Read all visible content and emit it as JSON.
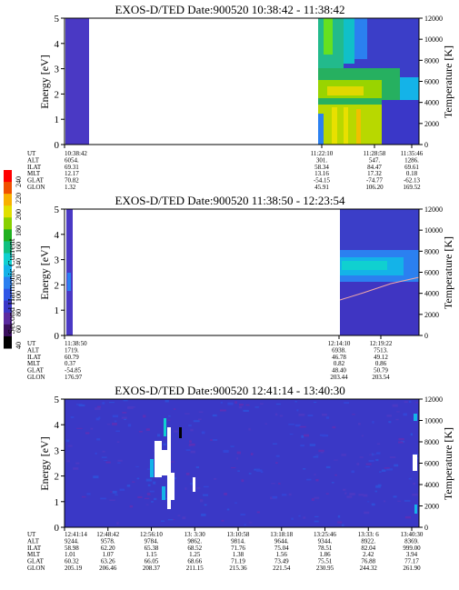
{
  "colorbar": {
    "label": "Second Harmonic Current",
    "ticks": [
      "40",
      "60",
      "80",
      "100",
      "120",
      "140",
      "160",
      "180",
      "200",
      "220",
      "240"
    ],
    "colors": [
      "#000000",
      "#3b0f5e",
      "#5b2aa0",
      "#3a37c8",
      "#2f56e6",
      "#2b80f0",
      "#14b3e8",
      "#10d0d0",
      "#10c080",
      "#20b020",
      "#88d000",
      "#e0e000",
      "#f8b000",
      "#f05000",
      "#ff0000"
    ]
  },
  "chart_data": [
    {
      "type": "heatmap",
      "title": "EXOS-D/TED   Date:900520  10:38:42 - 11:38:42",
      "ylabel": "Energy [eV]",
      "ylabel_right": "Temperature [K]",
      "ylim": [
        0,
        5
      ],
      "ylim_right": [
        0,
        12000
      ],
      "yticks": [
        "0",
        "1",
        "2",
        "3",
        "4",
        "5"
      ],
      "yticks_right": [
        "0",
        "2000",
        "4000",
        "6000",
        "8000",
        "10000",
        "12000"
      ],
      "orbit_rows": [
        "UT",
        "ALT",
        "ILAT",
        "MLT",
        "GLAT",
        "GLON"
      ],
      "orbit_columns": [
        {
          "values": [
            "10:38:42",
            "6054.",
            "69.31",
            "12.17",
            "70.82",
            "1.32"
          ]
        },
        {
          "values": [
            "11:22:10",
            "301.",
            "58.34",
            "13.16",
            "-54.15",
            "45.91"
          ]
        },
        {
          "values": [
            "11:28:58",
            "547.",
            "84.47",
            "17.32",
            "-74.77",
            "106.20"
          ]
        },
        {
          "values": [
            "11:35:46",
            "1286.",
            "69.61",
            "0.18",
            "-62.13",
            "169.52"
          ]
        }
      ]
    },
    {
      "type": "heatmap",
      "title": "EXOS-D/TED   Date:900520  11:38:50 - 12:23:54",
      "ylabel": "Energy [eV]",
      "ylabel_right": "Temperature [K]",
      "ylim": [
        0,
        5
      ],
      "ylim_right": [
        0,
        12000
      ],
      "yticks": [
        "0",
        "1",
        "2",
        "3",
        "4",
        "5"
      ],
      "yticks_right": [
        "0",
        "2000",
        "4000",
        "6000",
        "8000",
        "10000",
        "12000"
      ],
      "orbit_rows": [
        "UT",
        "ALT",
        "ILAT",
        "MLT",
        "GLAT",
        "GLON"
      ],
      "orbit_columns": [
        {
          "values": [
            "11:38:50",
            "1719.",
            "60.79",
            "0.37",
            "-54.85",
            "176.97"
          ]
        },
        {
          "values": [
            "12:14:10",
            "6938.",
            "46.78",
            "0.82",
            "48.40",
            "203.44"
          ]
        },
        {
          "values": [
            "12:19:22",
            "7513.",
            "49.12",
            "0.86",
            "50.79",
            "203.54"
          ]
        }
      ]
    },
    {
      "type": "heatmap",
      "title": "EXOS-D/TED   Date:900520  12:41:14 - 13:40:30",
      "ylabel": "Energy [eV]",
      "ylabel_right": "Temperature [K]",
      "ylim": [
        0,
        5
      ],
      "ylim_right": [
        0,
        12000
      ],
      "yticks": [
        "0",
        "1",
        "2",
        "3",
        "4",
        "5"
      ],
      "yticks_right": [
        "0",
        "2000",
        "4000",
        "6000",
        "8000",
        "10000",
        "12000"
      ],
      "orbit_rows": [
        "UT",
        "ALT",
        "ILAT",
        "MLT",
        "GLAT",
        "GLON"
      ],
      "orbit_columns": [
        {
          "values": [
            "12:41:14",
            "9244.",
            "58.98",
            "1.01",
            "60.32",
            "205.19"
          ]
        },
        {
          "values": [
            "12:48:42",
            "9578.",
            "62.20",
            "1.07",
            "63.26",
            "206.46"
          ]
        },
        {
          "values": [
            "12:56:10",
            "9784.",
            "65.38",
            "1.15",
            "66.05",
            "208.37"
          ]
        },
        {
          "values": [
            "13: 3:30",
            "9862.",
            "68.52",
            "1.25",
            "68.66",
            "211.15"
          ]
        },
        {
          "values": [
            "13:10:58",
            "9814.",
            "71.76",
            "1.38",
            "71.19",
            "215.36"
          ]
        },
        {
          "values": [
            "13:18:18",
            "9644.",
            "75.04",
            "1.56",
            "73.49",
            "221.54"
          ]
        },
        {
          "values": [
            "13:25:46",
            "9344.",
            "78.51",
            "1.86",
            "75.51",
            "230.95"
          ]
        },
        {
          "values": [
            "13:33: 6",
            "8922.",
            "82.04",
            "2.42",
            "76.88",
            "244.32"
          ]
        },
        {
          "values": [
            "13:40:30",
            "8369.",
            "999.00",
            "3.94",
            "77.17",
            "261.90"
          ]
        }
      ]
    }
  ]
}
